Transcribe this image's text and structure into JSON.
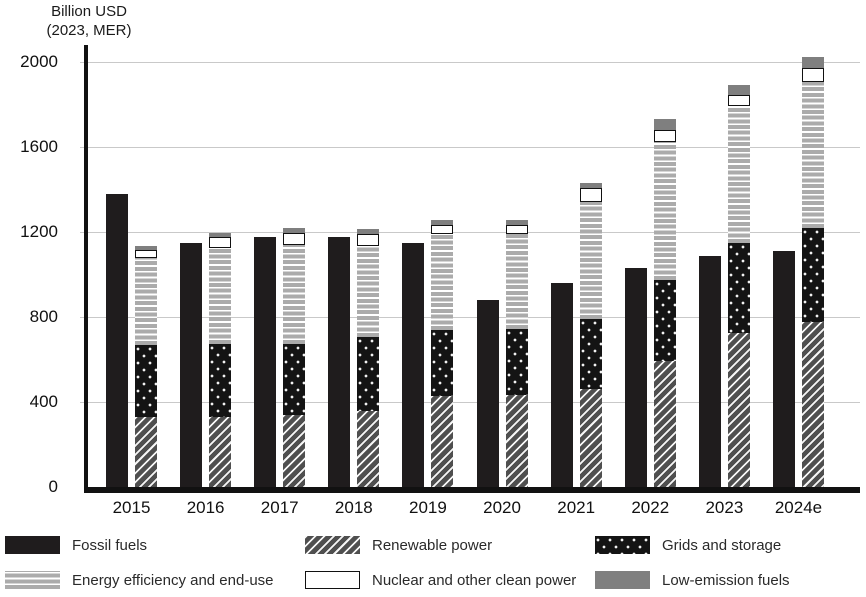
{
  "axis_title": {
    "line1": "Billion USD",
    "line2": "(2023, MER)"
  },
  "chart_data": {
    "type": "bar",
    "title": "Billion USD (2023, MER)",
    "note": "Two bars per year: solid fossil-fuel bar beside a stacked clean-energy bar",
    "categories": [
      "2015",
      "2016",
      "2017",
      "2018",
      "2019",
      "2020",
      "2021",
      "2022",
      "2023",
      "2024e"
    ],
    "y_ticks": [
      0,
      400,
      800,
      1200,
      1600,
      2000
    ],
    "ylim": [
      0,
      2090
    ],
    "grid": true,
    "legend_position": "bottom",
    "series": [
      {
        "key": "fossil",
        "name": "Fossil fuels",
        "stack": "none",
        "pattern": "solid-black",
        "color": "#1f1c1d",
        "values": [
          1380,
          1150,
          1175,
          1175,
          1150,
          880,
          960,
          1030,
          1085,
          1110
        ]
      },
      {
        "key": "renewable",
        "name": "Renewable power",
        "stack": "clean",
        "pattern": "diagonal-hatch",
        "color": "#4f4f4f",
        "values": [
          330,
          330,
          340,
          360,
          430,
          435,
          460,
          595,
          725,
          775
        ]
      },
      {
        "key": "grids",
        "name": "Grids and storage",
        "stack": "clean",
        "pattern": "black-with-white-dots",
        "color": "#141414",
        "values": [
          340,
          345,
          335,
          345,
          310,
          310,
          330,
          380,
          425,
          445
        ]
      },
      {
        "key": "efficiency",
        "name": "Energy efficiency and end-use",
        "stack": "clean",
        "pattern": "gray-horizontal-stripes",
        "color": "#ababab",
        "values": [
          410,
          450,
          465,
          430,
          450,
          445,
          550,
          650,
          645,
          685
        ]
      },
      {
        "key": "nuclear",
        "name": "Nuclear and other clean power",
        "stack": "clean",
        "pattern": "white-black-outline",
        "color": "#ffffff",
        "values": [
          35,
          50,
          55,
          55,
          45,
          45,
          65,
          55,
          50,
          65
        ]
      },
      {
        "key": "low_emission",
        "name": "Low-emission fuels",
        "stack": "clean",
        "pattern": "solid-gray",
        "color": "#7f7f7f",
        "values": [
          20,
          20,
          25,
          25,
          20,
          20,
          25,
          50,
          45,
          55
        ]
      }
    ],
    "clean_stack_order_bottom_to_top": [
      "renewable",
      "grids",
      "efficiency",
      "nuclear",
      "low_emission"
    ]
  },
  "legend": {
    "items": [
      {
        "key": "fossil",
        "label": "Fossil fuels"
      },
      {
        "key": "renewable",
        "label": "Renewable power"
      },
      {
        "key": "grids",
        "label": "Grids and storage"
      },
      {
        "key": "efficiency",
        "label": "Energy efficiency and end-use"
      },
      {
        "key": "nuclear",
        "label": "Nuclear and other clean power"
      },
      {
        "key": "low_emission",
        "label": "Low-emission fuels"
      }
    ]
  },
  "colors": {
    "axis": "#111111",
    "gridline": "#c9c9c9",
    "text": "#1a1a1a",
    "background": "#ffffff"
  }
}
